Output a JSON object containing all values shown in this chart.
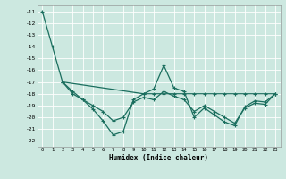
{
  "title": "",
  "xlabel": "Humidex (Indice chaleur)",
  "bg_color": "#cce8e0",
  "grid_color": "#b0d4cc",
  "line_color": "#1a6e5e",
  "xlim": [
    -0.5,
    23.5
  ],
  "ylim": [
    -22.5,
    -10.5
  ],
  "yticks": [
    -11,
    -12,
    -13,
    -14,
    -15,
    -16,
    -17,
    -18,
    -19,
    -20,
    -21,
    -22
  ],
  "xticks": [
    0,
    1,
    2,
    3,
    4,
    5,
    6,
    7,
    8,
    9,
    10,
    11,
    12,
    13,
    14,
    15,
    16,
    17,
    18,
    19,
    20,
    21,
    22,
    23
  ],
  "line1_x": [
    0,
    1,
    2,
    10,
    11,
    12,
    13,
    14,
    15,
    16,
    17,
    18,
    19,
    20,
    21,
    22,
    23
  ],
  "line1_y": [
    -11.0,
    -14.0,
    -17.0,
    -18.0,
    -18.0,
    -18.0,
    -18.0,
    -18.0,
    -18.0,
    -18.0,
    -18.0,
    -18.0,
    -18.0,
    -18.0,
    -18.0,
    -18.0,
    -18.0
  ],
  "line2_x": [
    2,
    3,
    4,
    5,
    6,
    7,
    8,
    9,
    10,
    11,
    12,
    13,
    14,
    15,
    16,
    17,
    18,
    19,
    20,
    21,
    22,
    23
  ],
  "line2_y": [
    -17.0,
    -18.0,
    -18.5,
    -19.3,
    -20.3,
    -21.5,
    -21.2,
    -18.5,
    -18.0,
    -17.6,
    -15.6,
    -17.5,
    -17.8,
    -20.0,
    -19.2,
    -19.8,
    -20.4,
    -20.7,
    -19.1,
    -18.6,
    -18.7,
    -18.0
  ],
  "line3_x": [
    2,
    3,
    4,
    5,
    6,
    7,
    8,
    9,
    10,
    11,
    12,
    13,
    14,
    15,
    16,
    17,
    18,
    19,
    20,
    21,
    22,
    23
  ],
  "line3_y": [
    -17.0,
    -17.8,
    -18.5,
    -19.0,
    -19.5,
    -20.3,
    -20.0,
    -18.7,
    -18.3,
    -18.5,
    -17.8,
    -18.2,
    -18.5,
    -19.5,
    -19.0,
    -19.5,
    -20.0,
    -20.5,
    -19.2,
    -18.8,
    -18.9,
    -18.0
  ]
}
